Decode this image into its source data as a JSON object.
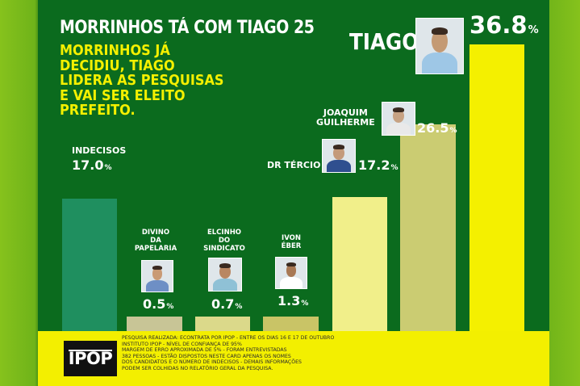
{
  "header": {
    "title": "MORRINHOS TÁ COM TIAGO 25",
    "subtitle": "MORRINHOS JÁ DECIDIU, TIAGO LIDERA AS PESQUISAS E VAI SER ELEITO PREFEITO."
  },
  "colors": {
    "background": "#0b6b1e",
    "accent_yellow": "#f4f000",
    "footer": "#f3ef00"
  },
  "chart_data": {
    "type": "bar",
    "categories": [
      "INDECISOS",
      "DIVINO DA PAPELARIA",
      "ELCINHO DO SINDICATO",
      "IVON ÉBER",
      "DR TÉRCIO",
      "JOAQUIM GUILHERME",
      "TIAGO"
    ],
    "values": [
      17.0,
      0.5,
      0.7,
      1.3,
      17.2,
      26.5,
      36.8
    ],
    "value_labels": [
      "17.0",
      "0.5",
      "0.7",
      "1.3",
      "17.2",
      "26.5",
      "36.8"
    ],
    "unit": "%",
    "bar_colors": [
      "#1f8f5f",
      "#c8c596",
      "#dbd98a",
      "#c9c466",
      "#f1ef8a",
      "#cbcc72",
      "#f4f000"
    ],
    "ylim": [
      0,
      36.8
    ],
    "grid": false
  },
  "footer": {
    "logo_text": "IPOP",
    "note": "PESQUISA REALIZADA: ECONTRATA POR IPOP - ENTRE OS DIAS 16 E 17 DE OUTUBRO\nINSTITUTO IPOP - NÍVEL DE CONFIANÇA DE 95%\nMARGEM DE ERRO APROXIMADA DE 5% - FORAM ENTREVISTADAS\n382 PESSOAS - ESTÃO DISPOSTOS NESTE CARD APENAS OS NOMES\nDOS CANDIDATOS E O NÚMERO DE INDECISOS - DEMAIS INFORMAÇÕES\nPODEM SER COLHIDAS NO RELATÓRIO GERAL DA PESQUISA."
  }
}
